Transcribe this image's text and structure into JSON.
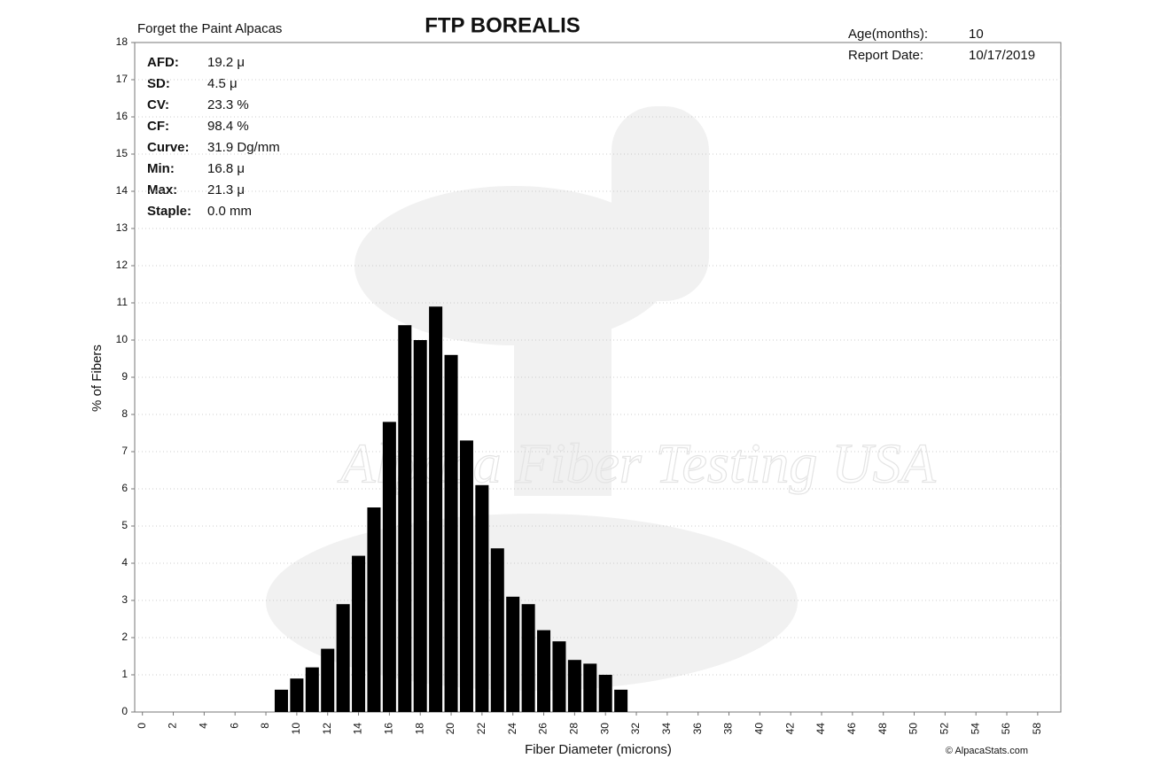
{
  "header": {
    "farm": "Forget the Paint Alpacas",
    "title": "FTP BOREALIS",
    "age_label": "Age(months):",
    "age": "10",
    "date_label": "Report Date:",
    "date": "10/17/2019"
  },
  "stats": [
    {
      "label": "AFD:",
      "value": "19.2 μ"
    },
    {
      "label": "SD:",
      "value": "4.5 μ"
    },
    {
      "label": "CV:",
      "value": "23.3 %"
    },
    {
      "label": "CF:",
      "value": "98.4 %"
    },
    {
      "label": "Curve:",
      "value": "31.9 Dg/mm"
    },
    {
      "label": "Min:",
      "value": "16.8 μ"
    },
    {
      "label": "Max:",
      "value": "21.3 μ"
    },
    {
      "label": "Staple:",
      "value": "0.0 mm"
    }
  ],
  "watermark": "Alpaca Fiber Testing USA",
  "credit": "© AlpacaStats.com",
  "chart_data": {
    "type": "histogram",
    "x_label": "Fiber Diameter (microns)",
    "y_label": "% of Fibers",
    "bins": [
      8.5,
      9.5,
      10.5,
      11.5,
      12.5,
      13.5,
      14.5,
      15.5,
      16.5,
      17.5,
      18.5,
      19.5,
      20.5,
      21.5,
      22.5,
      23.5,
      24.5,
      25.5,
      26.5,
      27.5,
      28.5,
      29.5,
      30.5,
      31.5
    ],
    "counts": [
      0.6,
      0.9,
      1.2,
      1.7,
      2.9,
      4.2,
      5.5,
      7.8,
      10.4,
      10.0,
      10.9,
      9.6,
      7.3,
      6.1,
      4.4,
      3.1,
      2.9,
      2.2,
      1.9,
      1.4,
      1.3,
      1.0,
      0.6
    ],
    "color": "#000000",
    "xlim": [
      -0.5,
      59.5
    ],
    "ylim": [
      0,
      18
    ],
    "xticks": [
      0,
      2,
      4,
      6,
      8,
      10,
      12,
      14,
      16,
      18,
      20,
      22,
      24,
      26,
      28,
      30,
      32,
      34,
      36,
      38,
      40,
      42,
      44,
      46,
      48,
      50,
      52,
      54,
      56,
      58
    ],
    "yticks": [
      0,
      1,
      2,
      3,
      4,
      5,
      6,
      7,
      8,
      9,
      10,
      11,
      12,
      13,
      14,
      15,
      16,
      17,
      18
    ],
    "grid": true
  }
}
